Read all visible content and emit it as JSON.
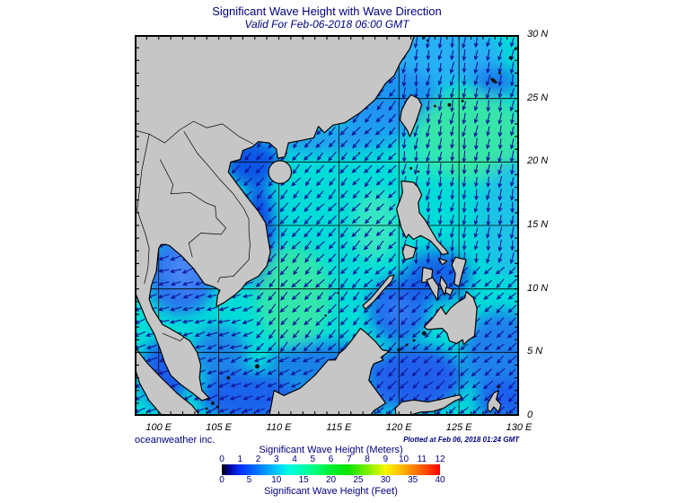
{
  "title": "Significant Wave Height with Wave Direction",
  "subtitle": "Valid For Feb-06-2018 06:00 GMT",
  "credit": "oceanweather inc.",
  "plotted": "Plotted at Feb 06, 2018 01:24 GMT",
  "colors": {
    "text_navy": "#00007f",
    "land_gray": "#c6c6c6",
    "coastline": "#000000",
    "ocean_base_cyan": "#00dcd8",
    "arrow_navy": "#13139a",
    "grid_black": "#000000"
  },
  "map": {
    "lon_min": 98,
    "lon_max": 130,
    "lat_min": 0,
    "lat_max": 30,
    "x_ticks": [
      {
        "lon": 100,
        "label": "100 E"
      },
      {
        "lon": 105,
        "label": "105 E"
      },
      {
        "lon": 110,
        "label": "110 E"
      },
      {
        "lon": 115,
        "label": "115 E"
      },
      {
        "lon": 120,
        "label": "120 E"
      },
      {
        "lon": 125,
        "label": "125 E"
      },
      {
        "lon": 130,
        "label": "130 E"
      }
    ],
    "y_ticks": [
      {
        "lat": 30,
        "label": "30 N"
      },
      {
        "lat": 25,
        "label": "25 N"
      },
      {
        "lat": 20,
        "label": "20 N"
      },
      {
        "lat": 15,
        "label": "15 N"
      },
      {
        "lat": 10,
        "label": "10 N"
      },
      {
        "lat": 5,
        "label": "5 N"
      },
      {
        "lat": 0,
        "label": "0"
      }
    ],
    "grid_lons": [
      100,
      105,
      110,
      115,
      120,
      125
    ],
    "grid_lats": [
      5,
      10,
      15,
      20,
      25
    ],
    "minor_tick_step": 1,
    "arrows": {
      "spacing_deg": 1,
      "color": "#13139a",
      "zones": [
        {
          "name": "gulf-of-thailand",
          "lon": [
            98,
            107.5
          ],
          "lat": [
            5,
            14
          ],
          "dir": 252
        },
        {
          "name": "east-pacific",
          "lon": [
            119.8,
            130.5
          ],
          "lat": [
            12,
            30.5
          ],
          "dir": 190
        },
        {
          "name": "celebes-sulu",
          "lon": [
            117,
            130.5
          ],
          "lat": [
            0,
            12
          ],
          "dir": 227
        },
        {
          "name": "java-malacca",
          "lon": [
            98,
            117
          ],
          "lat": [
            0,
            5
          ],
          "dir": 247
        },
        {
          "name": "south-china-sea",
          "lon": [
            98,
            130.5
          ],
          "lat": [
            0,
            30.5
          ],
          "dir": 222
        }
      ]
    }
  },
  "colorbar": {
    "title_meters": "Significant Wave Height (Meters)",
    "title_feet": "Significant Wave Height (Feet)",
    "meters_ticks": [
      "0",
      "1",
      "2",
      "3",
      "4",
      "5",
      "6",
      "7",
      "8",
      "9",
      "10",
      "11",
      "12"
    ],
    "feet_ticks": [
      "0",
      "5",
      "10",
      "15",
      "20",
      "25",
      "30",
      "35",
      "40"
    ],
    "gradient_stops": [
      [
        0,
        "#000000"
      ],
      [
        3,
        "#000090"
      ],
      [
        8.3,
        "#0030ff"
      ],
      [
        16.7,
        "#0078ff"
      ],
      [
        25,
        "#00c8ff"
      ],
      [
        31,
        "#00ffe0"
      ],
      [
        37.5,
        "#00ffae"
      ],
      [
        43,
        "#00ff78"
      ],
      [
        50,
        "#00f030"
      ],
      [
        58.3,
        "#10e400"
      ],
      [
        66.7,
        "#7cf000"
      ],
      [
        75,
        "#f8f800"
      ],
      [
        83.3,
        "#ffb000"
      ],
      [
        91.7,
        "#ff5c00"
      ],
      [
        100,
        "#ff0000"
      ]
    ]
  },
  "chart_data": {
    "type": "heatmap",
    "title": "Significant Wave Height with Wave Direction",
    "valid_time": "Feb-06-2018 06:00 GMT",
    "region": {
      "lon_east": [
        98,
        130
      ],
      "lat_north": [
        0,
        30
      ]
    },
    "scale_meters": [
      0,
      1,
      2,
      3,
      4,
      5,
      6,
      7,
      8,
      9,
      10,
      11,
      12
    ],
    "scale_feet": [
      0,
      5,
      10,
      15,
      20,
      25,
      30,
      35,
      40
    ],
    "notable_values_m": {
      "east_of_taiwan_green_patch": 3.5,
      "central_south_china_sea_green_patch": 3,
      "open_sea_cyan": 2.5,
      "gulf_of_thailand": 1,
      "coastal_dark_blue": 0.5
    },
    "wave_direction": "predominantly toward the southwest (northeast monsoon pattern)"
  }
}
